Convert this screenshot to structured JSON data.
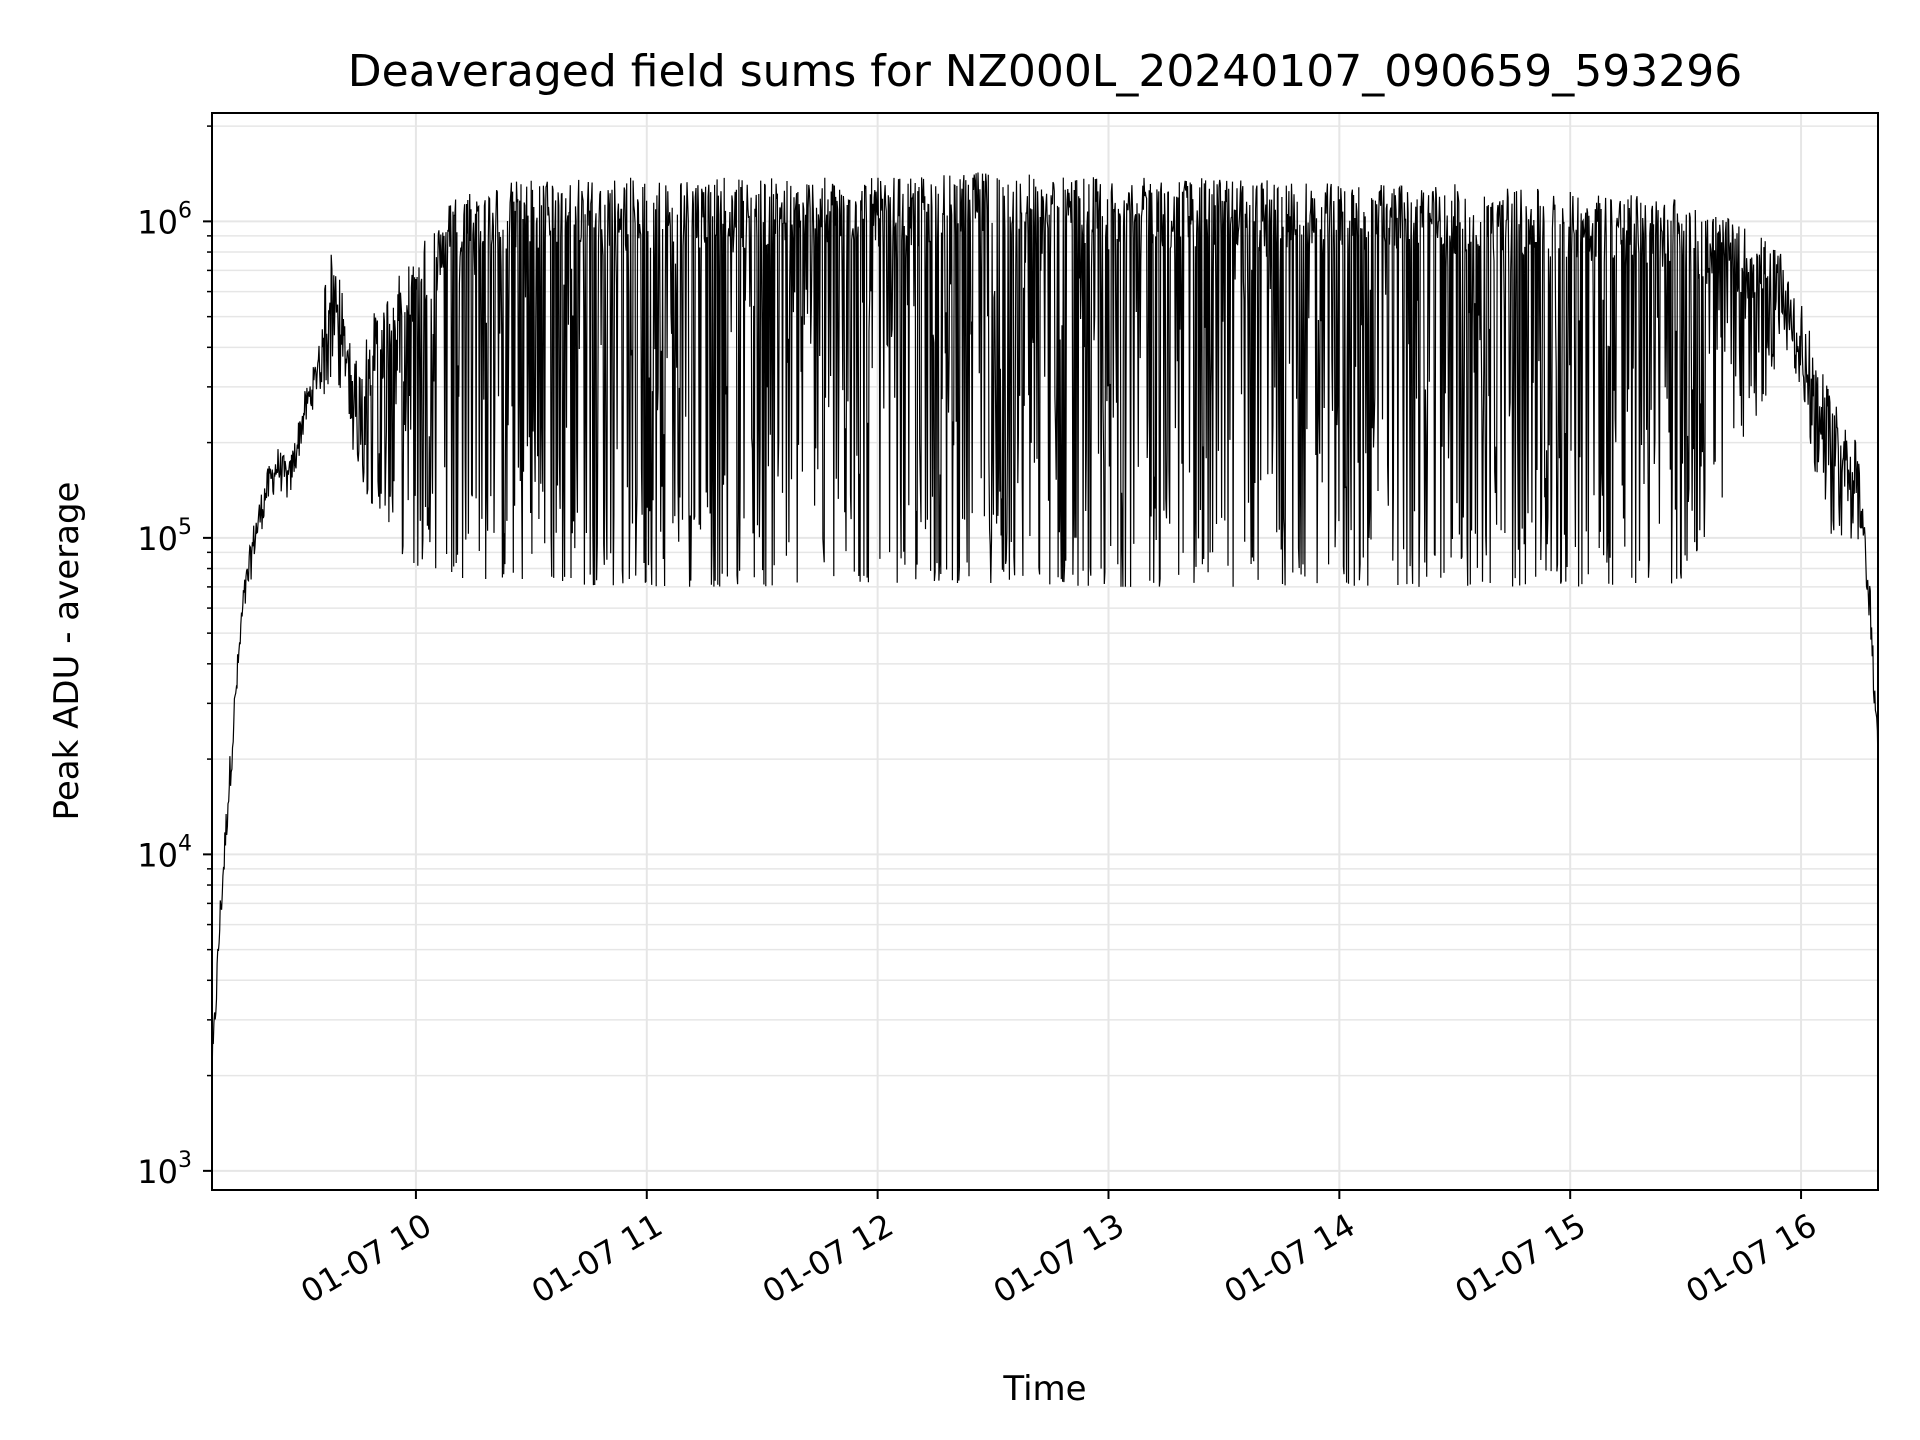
{
  "chart_data": {
    "type": "line",
    "title": "Deaveraged field sums for NZ000L_20240107_090659_593296",
    "xlabel": "Time",
    "ylabel": "Peak ADU - average",
    "y_scale": "log",
    "ylim": [
      870,
      2200000
    ],
    "xlim": [
      "2024-01-07 09:07",
      "2024-01-07 16:20"
    ],
    "grid": true,
    "line_color": "#000000",
    "grid_color": "#e6e6e6",
    "x_ticks": [
      {
        "label": "01-07 10",
        "time": "2024-01-07 10:00"
      },
      {
        "label": "01-07 11",
        "time": "2024-01-07 11:00"
      },
      {
        "label": "01-07 12",
        "time": "2024-01-07 12:00"
      },
      {
        "label": "01-07 13",
        "time": "2024-01-07 13:00"
      },
      {
        "label": "01-07 14",
        "time": "2024-01-07 14:00"
      },
      {
        "label": "01-07 15",
        "time": "2024-01-07 15:00"
      },
      {
        "label": "01-07 16",
        "time": "2024-01-07 16:00"
      }
    ],
    "y_ticks": [
      {
        "base": "10",
        "exp": "3",
        "value": 1000
      },
      {
        "base": "10",
        "exp": "4",
        "value": 10000
      },
      {
        "base": "10",
        "exp": "5",
        "value": 100000
      },
      {
        "base": "10",
        "exp": "6",
        "value": 1000000
      }
    ],
    "series": [
      {
        "x": [
          "2024-01-07 09:07",
          "2024-01-07 09:09",
          "2024-01-07 09:11",
          "2024-01-07 09:13",
          "2024-01-07 09:15",
          "2024-01-07 09:18",
          "2024-01-07 09:21",
          "2024-01-07 09:24",
          "2024-01-07 09:27",
          "2024-01-07 09:31",
          "2024-01-07 09:34",
          "2024-01-07 09:36",
          "2024-01-07 09:38",
          "2024-01-07 09:40",
          "2024-01-07 09:42",
          "2024-01-07 09:44",
          "2024-01-07 09:46",
          "2024-01-07 09:48",
          "2024-01-07 09:52",
          "2024-01-07 09:56",
          "2024-01-07 10:00",
          "2024-01-07 10:06",
          "2024-01-07 10:10",
          "2024-01-07 10:30",
          "2024-01-07 11:00",
          "2024-01-07 11:30",
          "2024-01-07 12:00",
          "2024-01-07 12:30",
          "2024-01-07 13:00",
          "2024-01-07 13:30",
          "2024-01-07 14:00",
          "2024-01-07 14:30",
          "2024-01-07 15:00",
          "2024-01-07 15:30",
          "2024-01-07 15:52",
          "2024-01-07 15:56",
          "2024-01-07 16:00",
          "2024-01-07 16:04",
          "2024-01-07 16:08",
          "2024-01-07 16:12",
          "2024-01-07 16:15",
          "2024-01-07 16:18",
          "2024-01-07 16:20"
        ],
        "y": [
          2000,
          6000,
          14000,
          30000,
          60000,
          100000,
          140000,
          170000,
          150000,
          250000,
          320000,
          500000,
          650000,
          550000,
          400000,
          300000,
          350000,
          400000,
          450000,
          550000,
          650000,
          800000,
          1000000,
          1100000,
          1100000,
          1100000,
          1100000,
          1150000,
          1100000,
          1100000,
          1050000,
          1050000,
          1000000,
          950000,
          700000,
          600000,
          450000,
          300000,
          220000,
          200000,
          150000,
          60000,
          20000
        ],
        "low_envelope": [
          2000,
          6000,
          14000,
          30000,
          60000,
          100000,
          130000,
          150000,
          120000,
          180000,
          250000,
          280000,
          320000,
          300000,
          220000,
          180000,
          150000,
          130000,
          120000,
          90000,
          80000,
          80000,
          75000,
          72000,
          70000,
          70000,
          72000,
          72000,
          70000,
          70000,
          70000,
          70000,
          70000,
          72000,
          300000,
          400000,
          300000,
          150000,
          100000,
          100000,
          90000,
          50000,
          20000
        ]
      }
    ]
  }
}
